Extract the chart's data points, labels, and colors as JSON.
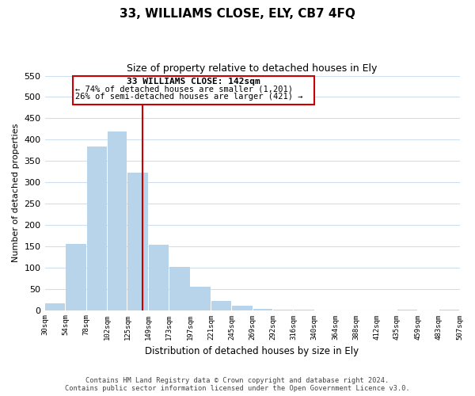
{
  "title": "33, WILLIAMS CLOSE, ELY, CB7 4FQ",
  "subtitle": "Size of property relative to detached houses in Ely",
  "xlabel": "Distribution of detached houses by size in Ely",
  "ylabel": "Number of detached properties",
  "footer_line1": "Contains HM Land Registry data © Crown copyright and database right 2024.",
  "footer_line2": "Contains public sector information licensed under the Open Government Licence v3.0.",
  "bar_left_edges": [
    30,
    54,
    78,
    102,
    125,
    149,
    173,
    197,
    221,
    245,
    269,
    292,
    316,
    340,
    364,
    388,
    412,
    435,
    459,
    483
  ],
  "bar_heights": [
    15,
    155,
    383,
    420,
    323,
    153,
    101,
    54,
    21,
    10,
    3,
    1,
    1,
    0,
    0,
    0,
    0,
    1,
    0,
    1
  ],
  "bar_widths": [
    24,
    24,
    24,
    23,
    24,
    24,
    24,
    24,
    24,
    24,
    23,
    24,
    24,
    24,
    24,
    24,
    23,
    24,
    24,
    24
  ],
  "tick_labels": [
    "30sqm",
    "54sqm",
    "78sqm",
    "102sqm",
    "125sqm",
    "149sqm",
    "173sqm",
    "197sqm",
    "221sqm",
    "245sqm",
    "269sqm",
    "292sqm",
    "316sqm",
    "340sqm",
    "364sqm",
    "388sqm",
    "412sqm",
    "435sqm",
    "459sqm",
    "483sqm",
    "507sqm"
  ],
  "tick_positions": [
    30,
    54,
    78,
    102,
    125,
    149,
    173,
    197,
    221,
    245,
    269,
    292,
    316,
    340,
    364,
    388,
    412,
    435,
    459,
    483,
    507
  ],
  "bar_color": "#b8d4ea",
  "property_line_x": 142,
  "property_line_color": "#cc0000",
  "annotation_text_line1": "33 WILLIAMS CLOSE: 142sqm",
  "annotation_text_line2": "← 74% of detached houses are smaller (1,201)",
  "annotation_text_line3": "26% of semi-detached houses are larger (421) →",
  "ylim": [
    0,
    550
  ],
  "xlim": [
    30,
    507
  ],
  "yticks": [
    0,
    50,
    100,
    150,
    200,
    250,
    300,
    350,
    400,
    450,
    500,
    550
  ],
  "grid_color": "#d0dff0",
  "background_color": "#ffffff"
}
